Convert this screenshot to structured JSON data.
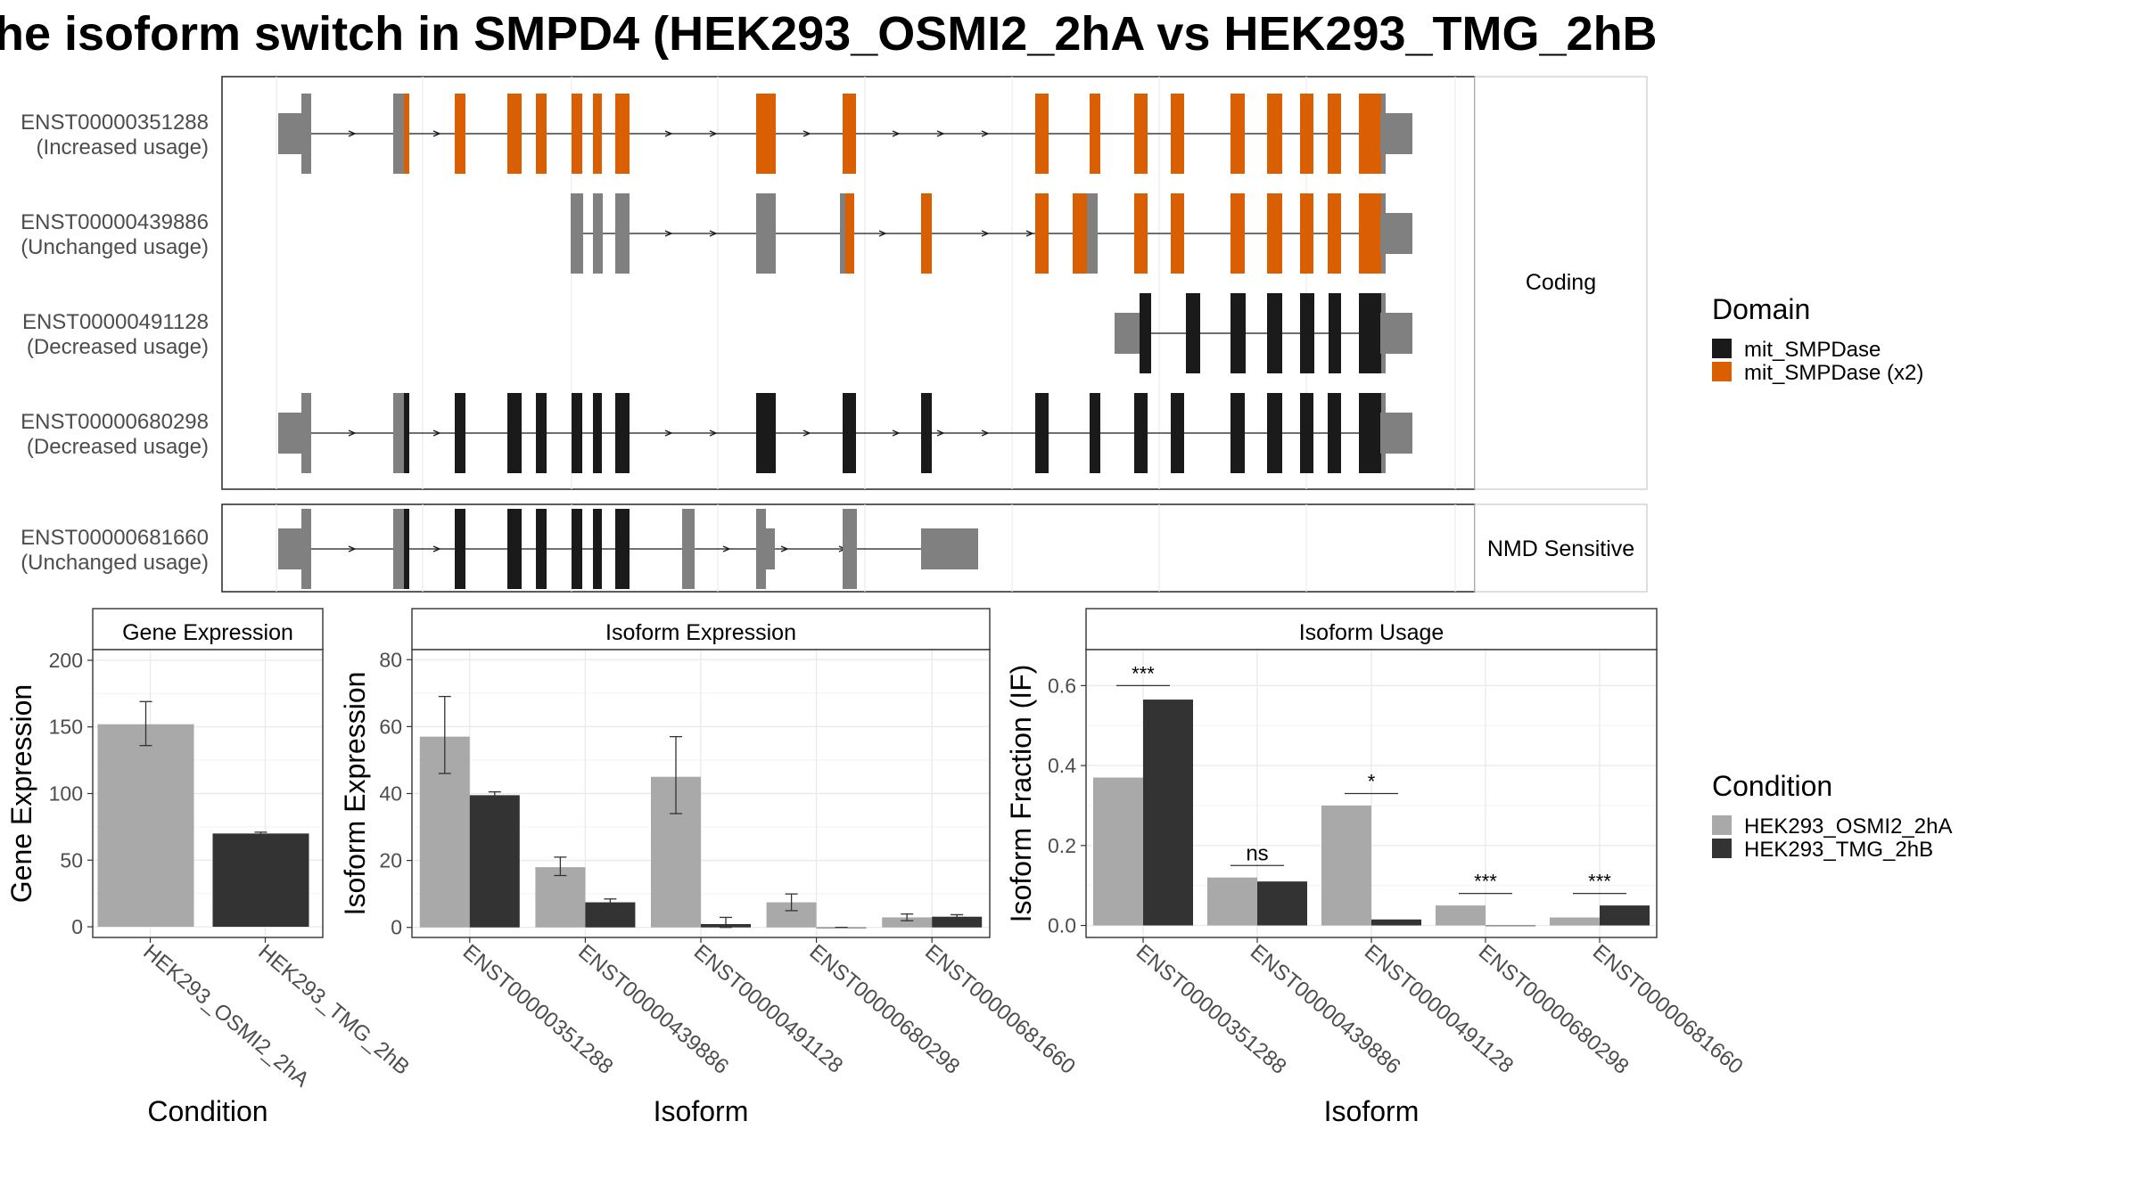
{
  "title": "he isoform switch in SMPD4 (HEK293_OSMI2_2hA vs HEK293_TMG_2hB",
  "colors": {
    "domain_single": "#1a1a1a",
    "domain_double": "#d95f02",
    "utr": "#808080",
    "cond_a": "#a9a9a9",
    "cond_b": "#333333",
    "grid": "#ebebeb"
  },
  "transcripts": [
    {
      "id": "ENST00000351288",
      "status": "(Increased usage)"
    },
    {
      "id": "ENST00000439886",
      "status": "(Unchanged usage)"
    },
    {
      "id": "ENST00000491128",
      "status": "(Decreased usage)"
    },
    {
      "id": "ENST00000680298",
      "status": "(Decreased usage)"
    },
    {
      "id": "ENST00000681660",
      "status": "(Unchanged usage)"
    }
  ],
  "strips": {
    "coding": "Coding",
    "nmd": "NMD Sensitive"
  },
  "legend_domain": {
    "title": "Domain",
    "items": [
      {
        "label": "mit_SMPDase",
        "color": "#1a1a1a"
      },
      {
        "label": "mit_SMPDase (x2)",
        "color": "#d95f02"
      }
    ]
  },
  "legend_condition": {
    "title": "Condition",
    "items": [
      {
        "label": "HEK293_OSMI2_2hA",
        "color": "#a9a9a9"
      },
      {
        "label": "HEK293_TMG_2hB",
        "color": "#333333"
      }
    ]
  },
  "chart_data": [
    {
      "type": "bar",
      "title": "Gene Expression",
      "xlabel": "Condition",
      "ylabel": "Gene Expression",
      "categories": [
        "HEK293_OSMI2_2hA",
        "HEK293_TMG_2hB"
      ],
      "values": [
        152,
        70
      ],
      "error": [
        [
          136,
          169
        ],
        [
          69,
          71
        ]
      ],
      "ylim": [
        -8,
        208
      ],
      "yticks": [
        "0",
        "50",
        "100",
        "150",
        "200"
      ],
      "grid": true
    },
    {
      "type": "bar",
      "title": "Isoform Expression",
      "xlabel": "Isoform",
      "ylabel": "Isoform Expression",
      "categories": [
        "ENST00000351288",
        "ENST00000439886",
        "ENST00000491128",
        "ENST00000680298",
        "ENST00000681660"
      ],
      "series": [
        {
          "name": "HEK293_OSMI2_2hA",
          "values": [
            57,
            18,
            45,
            7.5,
            3
          ],
          "error": [
            [
              46,
              69
            ],
            [
              15.5,
              21
            ],
            [
              34,
              57
            ],
            [
              5,
              10
            ],
            [
              2,
              4
            ]
          ]
        },
        {
          "name": "HEK293_TMG_2hB",
          "values": [
            39.5,
            7.5,
            1,
            0,
            3.2
          ],
          "error": [
            [
              39,
              40.5
            ],
            [
              7,
              8.5
            ],
            [
              0,
              3
            ],
            [
              0,
              0
            ],
            [
              2.6,
              3.8
            ]
          ]
        }
      ],
      "ylim": [
        -3,
        83
      ],
      "yticks": [
        "0",
        "20",
        "40",
        "60",
        "80"
      ],
      "grid": true
    },
    {
      "type": "bar",
      "title": "Isoform Usage",
      "xlabel": "Isoform",
      "ylabel": "Isoform Fraction (IF)",
      "categories": [
        "ENST00000351288",
        "ENST00000439886",
        "ENST00000491128",
        "ENST00000680298",
        "ENST00000681660"
      ],
      "series": [
        {
          "name": "HEK293_OSMI2_2hA",
          "values": [
            0.37,
            0.12,
            0.3,
            0.05,
            0.02
          ]
        },
        {
          "name": "HEK293_TMG_2hB",
          "values": [
            0.565,
            0.11,
            0.015,
            0.0,
            0.05
          ]
        }
      ],
      "significance": [
        "***",
        "ns",
        "*",
        "***",
        "***"
      ],
      "sig_level": [
        0.6,
        0.15,
        0.33,
        0.08,
        0.08
      ],
      "ylim": [
        -0.03,
        0.69
      ],
      "yticks": [
        "0.0",
        "0.2",
        "0.4",
        "0.6"
      ],
      "grid": true
    }
  ]
}
